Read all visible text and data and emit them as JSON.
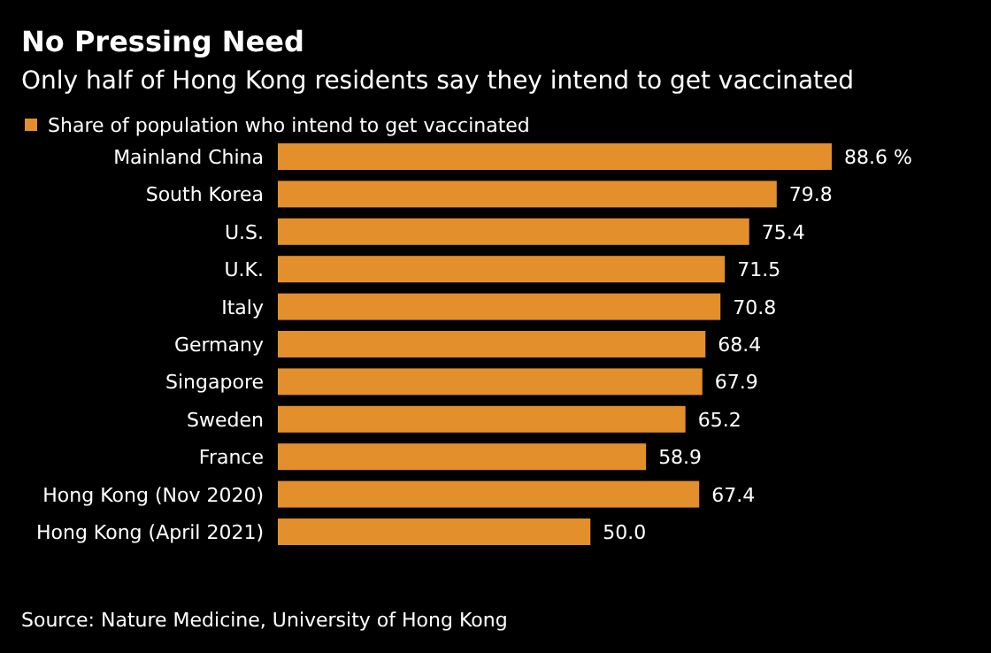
{
  "chart_data": {
    "type": "bar",
    "orientation": "horizontal",
    "title": "No Pressing Need",
    "subtitle": "Only half of Hong Kong residents say they intend to get vaccinated",
    "categories": [
      "Mainland China",
      "South Korea",
      "U.S.",
      "U.K.",
      "Italy",
      "Germany",
      "Singapore",
      "Sweden",
      "France",
      "Hong Kong (Nov 2020)",
      "Hong Kong (April 2021)"
    ],
    "series": [
      {
        "name": "Share of population who intend to get vaccinated",
        "color": "#e38f2b",
        "values": [
          88.6,
          79.8,
          75.4,
          71.5,
          70.8,
          68.4,
          67.9,
          65.2,
          58.9,
          67.4,
          50.0
        ],
        "value_labels": [
          "88.6 %",
          "79.8",
          "75.4",
          "71.5",
          "70.8",
          "68.4",
          "67.9",
          "65.2",
          "58.9",
          "67.4",
          "50.0"
        ]
      }
    ],
    "legend": "top left",
    "annotations": [
      "Source: Nature Medicine, University of Hong Kong"
    ]
  }
}
